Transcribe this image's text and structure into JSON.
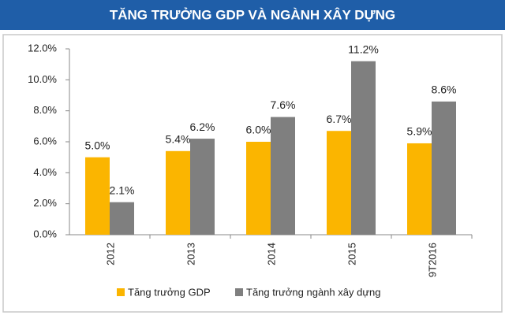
{
  "chart_data": {
    "type": "bar",
    "title": "TĂNG TRƯỞNG GDP VÀ NGÀNH XÂY DỰNG",
    "categories": [
      "2012",
      "2013",
      "2014",
      "2015",
      "9T2016"
    ],
    "series": [
      {
        "name": "Tăng trưởng GDP",
        "color": "#fbb500",
        "values": [
          5.0,
          5.4,
          6.0,
          6.7,
          5.9
        ],
        "value_labels": [
          "5.0%",
          "5.4%",
          "6.0%",
          "6.7%",
          "5.9%"
        ]
      },
      {
        "name": "Tăng trưởng ngành xây dựng",
        "color": "#7f7f7f",
        "values": [
          2.1,
          6.2,
          7.6,
          11.2,
          8.6
        ],
        "value_labels": [
          "2.1%",
          "6.2%",
          "7.6%",
          "11.2%",
          "8.6%"
        ]
      }
    ],
    "ylim": [
      0,
      12
    ],
    "yticks": [
      {
        "value": 0,
        "label": "0.0%"
      },
      {
        "value": 2,
        "label": "2.0%"
      },
      {
        "value": 4,
        "label": "4.0%"
      },
      {
        "value": 6,
        "label": "6.0%"
      },
      {
        "value": 8,
        "label": "8.0%"
      },
      {
        "value": 10,
        "label": "10.0%"
      },
      {
        "value": 12,
        "label": "12.0%"
      }
    ],
    "legend": "bottom"
  }
}
